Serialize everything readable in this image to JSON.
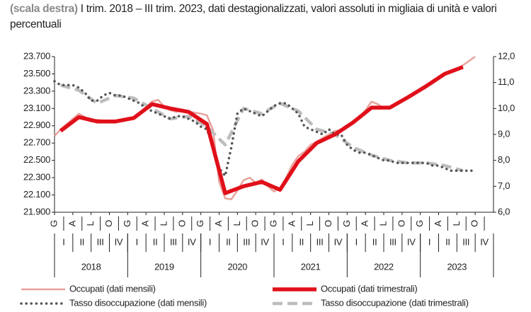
{
  "chart_data": {
    "type": "line",
    "title_prefix": "(scala destra)",
    "title": "I trim. 2018 – III trim. 2023, dati destagionalizzati, valori assoluti in migliaia di unità e valori percentuali",
    "months_total": 72,
    "month_labels": [
      "G",
      "A",
      "L",
      "O",
      "G",
      "A",
      "L",
      "O",
      "G",
      "A",
      "L",
      "O",
      "G",
      "A",
      "L",
      "O",
      "G",
      "A",
      "L",
      "O",
      "G",
      "A",
      "L",
      "O"
    ],
    "quarter_labels": [
      "I",
      "II",
      "III",
      "IV",
      "I",
      "II",
      "III",
      "IV",
      "I",
      "II",
      "III",
      "IV",
      "I",
      "II",
      "III",
      "IV",
      "I",
      "II",
      "III",
      "IV",
      "I",
      "II",
      "III",
      "IV"
    ],
    "years": [
      "2018",
      "2019",
      "2020",
      "2021",
      "2022",
      "2023"
    ],
    "ylim": [
      21900,
      23700
    ],
    "yticks": [
      {
        "value": 21900,
        "label": "21.900"
      },
      {
        "value": 22100,
        "label": "22.100"
      },
      {
        "value": 22300,
        "label": "22.300"
      },
      {
        "value": 22500,
        "label": "22.500"
      },
      {
        "value": 22700,
        "label": "22.700"
      },
      {
        "value": 22900,
        "label": "22.900"
      },
      {
        "value": 23100,
        "label": "23.100"
      },
      {
        "value": 23300,
        "label": "23.300"
      },
      {
        "value": 23500,
        "label": "23.500"
      },
      {
        "value": 23700,
        "label": "23.700"
      }
    ],
    "y2lim": [
      6,
      12
    ],
    "y2ticks": [
      {
        "value": 6,
        "label": "6,0"
      },
      {
        "value": 7,
        "label": "7,0"
      },
      {
        "value": 8,
        "label": "8,0"
      },
      {
        "value": 9,
        "label": "9,0"
      },
      {
        "value": 10,
        "label": "10,0"
      },
      {
        "value": 11,
        "label": "11,0"
      },
      {
        "value": 12,
        "label": "12,0"
      }
    ],
    "series": [
      {
        "name": "Occupati (dati mensili)",
        "color": "#e8a29c",
        "style": "thin",
        "frequency": "monthly",
        "values": [
          22780,
          22860,
          22920,
          22980,
          23040,
          23000,
          22950,
          22970,
          22960,
          22940,
          22960,
          22970,
          22990,
          23000,
          23050,
          23120,
          23180,
          23200,
          23120,
          23080,
          23060,
          23080,
          23070,
          23050,
          23040,
          23020,
          22850,
          22250,
          22060,
          22050,
          22150,
          22270,
          22300,
          22240,
          22280,
          22200,
          22140,
          22180,
          22300,
          22450,
          22550,
          22600,
          22680,
          22720,
          22760,
          22800,
          22840,
          22850,
          22880,
          22950,
          23000,
          23080,
          23180,
          23150,
          23100,
          23120,
          23140,
          23200,
          23240,
          23270,
          23320,
          23360,
          23400,
          23460,
          23500,
          23530,
          23550,
          23600,
          23650,
          23700
        ]
      },
      {
        "name": "Occupati (dati trimestrali)",
        "color": "#e0101a",
        "style": "thick",
        "frequency": "quarterly",
        "values": [
          22840,
          23000,
          22950,
          22950,
          22990,
          23150,
          23100,
          23060,
          22920,
          22120,
          22200,
          22250,
          22160,
          22490,
          22700,
          22800,
          22940,
          23110,
          23110,
          23230,
          23360,
          23500,
          23580
        ]
      },
      {
        "name": "Tasso disoccupazione (dati mensili)",
        "color": "#555555",
        "style": "dotted",
        "frequency": "monthly",
        "axis": "y2",
        "values": [
          11.05,
          10.9,
          10.9,
          10.9,
          10.8,
          10.6,
          10.3,
          10.3,
          10.5,
          10.6,
          10.5,
          10.5,
          10.4,
          10.3,
          10.2,
          10.0,
          9.9,
          9.8,
          9.7,
          9.6,
          9.7,
          9.7,
          9.6,
          9.5,
          9.3,
          9.2,
          8.5,
          7.7,
          7.4,
          8.5,
          9.8,
          10.0,
          9.9,
          9.8,
          9.7,
          9.9,
          10.1,
          10.2,
          10.2,
          10.0,
          9.8,
          9.3,
          9.2,
          9.1,
          9.0,
          9.2,
          9.0,
          9.0,
          8.6,
          8.4,
          8.3,
          8.3,
          8.2,
          8.1,
          8.0,
          8.0,
          7.9,
          7.9,
          7.9,
          7.9,
          7.9,
          7.9,
          7.8,
          7.8,
          7.7,
          7.6,
          7.6,
          7.6,
          7.6,
          7.6
        ]
      },
      {
        "name": "Tasso disoccupazione (dati trimestrali)",
        "color": "#bdbdbd",
        "style": "dashed",
        "frequency": "quarterly",
        "axis": "y2",
        "values": [
          10.9,
          10.7,
          10.2,
          10.5,
          10.4,
          10.0,
          9.6,
          9.7,
          9.3,
          8.6,
          10.0,
          9.8,
          10.2,
          9.9,
          9.2,
          9.0,
          8.5,
          8.2,
          8.0,
          7.9,
          7.9,
          7.8,
          7.6
        ]
      }
    ]
  }
}
